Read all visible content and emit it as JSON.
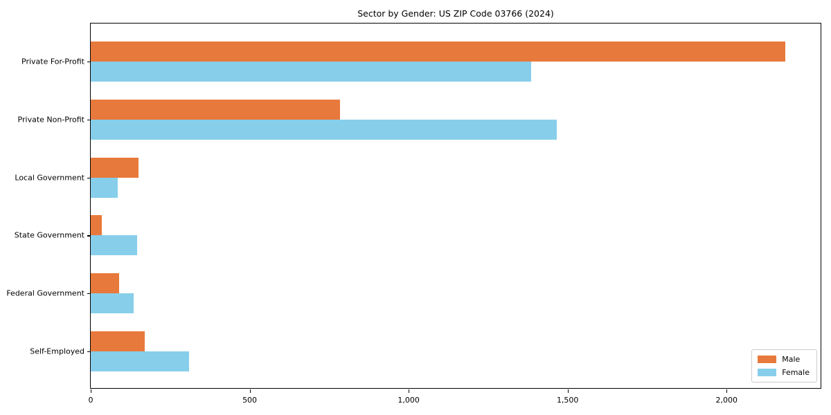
{
  "chart_data": {
    "type": "bar",
    "orientation": "horizontal",
    "title": "Sector by Gender: US ZIP Code 03766 (2024)",
    "categories": [
      "Private For-Profit",
      "Private Non-Profit",
      "Local Government",
      "State Government",
      "Federal Government",
      "Self-Employed"
    ],
    "series": [
      {
        "name": "Male",
        "color": "#E8793C",
        "values": [
          2185,
          785,
          150,
          35,
          90,
          170
        ]
      },
      {
        "name": "Female",
        "color": "#87CEEB",
        "values": [
          1385,
          1465,
          85,
          145,
          135,
          310
        ]
      }
    ],
    "xlabel": "",
    "ylabel": "",
    "xlim": [
      0,
      2300
    ],
    "xticks": [
      0,
      500,
      1000,
      1500,
      2000
    ],
    "xtick_labels": [
      "0",
      "500",
      "1,000",
      "1,500",
      "2,000"
    ],
    "grid": false,
    "legend_position": "lower right",
    "colors": {
      "male": "#E8793C",
      "female": "#87CEEB",
      "spine": "#000000",
      "background": "#ffffff"
    }
  },
  "legend": {
    "male_label": "Male",
    "female_label": "Female"
  }
}
